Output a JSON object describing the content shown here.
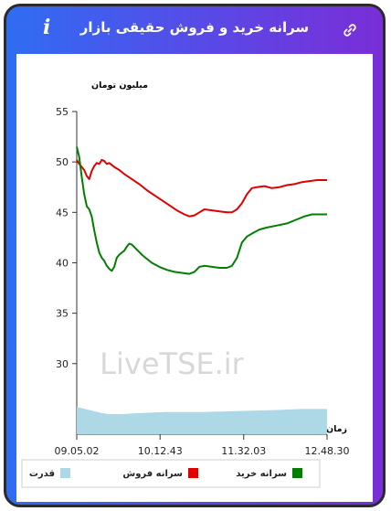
{
  "header": {
    "title": "سرانه خرید و فروش حقیقی بازار",
    "info_icon": "i",
    "link_icon": "link-icon"
  },
  "watermark": "LiveTSE.ir",
  "chart_data": {
    "type": "line",
    "ylabel": "میلیون تومان",
    "xlabel": "زمان",
    "yticks": [
      30,
      35,
      40,
      45,
      50,
      55
    ],
    "ylim": [
      23,
      55
    ],
    "xlim": [
      0,
      100
    ],
    "xticks": [
      {
        "x": 0,
        "label": "09.05.02"
      },
      {
        "x": 33.3,
        "label": "10.12.43"
      },
      {
        "x": 66.7,
        "label": "11.32.03"
      },
      {
        "x": 100,
        "label": "12.48.30"
      }
    ],
    "legend": [
      {
        "name": "سرانه خرید",
        "color": "#008000"
      },
      {
        "name": "سرانه فروش",
        "color": "#e00000"
      },
      {
        "name": "قدرت",
        "color": "#add8e6"
      }
    ],
    "series": [
      {
        "name": "سرانه فروش",
        "color": "#e00000",
        "points": [
          [
            0,
            50.2
          ],
          [
            1,
            49.8
          ],
          [
            2,
            49.5
          ],
          [
            3,
            49.2
          ],
          [
            4,
            48.6
          ],
          [
            5,
            48.3
          ],
          [
            6,
            49.1
          ],
          [
            7,
            49.6
          ],
          [
            8,
            49.9
          ],
          [
            9,
            49.8
          ],
          [
            10,
            50.2
          ],
          [
            11,
            50.1
          ],
          [
            12,
            49.8
          ],
          [
            13,
            49.9
          ],
          [
            15,
            49.5
          ],
          [
            17,
            49.2
          ],
          [
            19,
            48.8
          ],
          [
            22,
            48.3
          ],
          [
            25,
            47.8
          ],
          [
            28,
            47.2
          ],
          [
            31,
            46.7
          ],
          [
            34,
            46.2
          ],
          [
            37,
            45.7
          ],
          [
            40,
            45.2
          ],
          [
            43,
            44.8
          ],
          [
            45,
            44.6
          ],
          [
            47,
            44.7
          ],
          [
            49,
            45.0
          ],
          [
            51,
            45.3
          ],
          [
            54,
            45.2
          ],
          [
            57,
            45.1
          ],
          [
            60,
            45.0
          ],
          [
            62,
            45.0
          ],
          [
            64,
            45.3
          ],
          [
            66,
            45.9
          ],
          [
            68,
            46.8
          ],
          [
            70,
            47.4
          ],
          [
            72,
            47.5
          ],
          [
            75,
            47.6
          ],
          [
            78,
            47.4
          ],
          [
            81,
            47.5
          ],
          [
            84,
            47.7
          ],
          [
            87,
            47.8
          ],
          [
            90,
            48.0
          ],
          [
            93,
            48.1
          ],
          [
            96,
            48.2
          ],
          [
            100,
            48.2
          ]
        ]
      },
      {
        "name": "سرانه خرید",
        "color": "#008000",
        "points": [
          [
            0,
            51.5
          ],
          [
            1,
            50.5
          ],
          [
            2,
            48.5
          ],
          [
            3,
            46.8
          ],
          [
            4,
            45.6
          ],
          [
            5,
            45.3
          ],
          [
            6,
            44.6
          ],
          [
            7,
            43.2
          ],
          [
            8,
            42.0
          ],
          [
            9,
            41.0
          ],
          [
            10,
            40.5
          ],
          [
            11,
            40.2
          ],
          [
            12,
            39.7
          ],
          [
            13,
            39.4
          ],
          [
            14,
            39.2
          ],
          [
            15,
            39.6
          ],
          [
            16,
            40.5
          ],
          [
            17,
            40.8
          ],
          [
            18,
            41.0
          ],
          [
            19,
            41.2
          ],
          [
            20,
            41.6
          ],
          [
            21,
            41.9
          ],
          [
            22,
            41.8
          ],
          [
            24,
            41.3
          ],
          [
            26,
            40.8
          ],
          [
            28,
            40.4
          ],
          [
            30,
            40.0
          ],
          [
            33,
            39.6
          ],
          [
            36,
            39.3
          ],
          [
            39,
            39.1
          ],
          [
            42,
            39.0
          ],
          [
            45,
            38.9
          ],
          [
            47,
            39.1
          ],
          [
            49,
            39.6
          ],
          [
            51,
            39.7
          ],
          [
            54,
            39.6
          ],
          [
            57,
            39.5
          ],
          [
            60,
            39.5
          ],
          [
            62,
            39.7
          ],
          [
            64,
            40.5
          ],
          [
            66,
            42.0
          ],
          [
            68,
            42.6
          ],
          [
            70,
            42.9
          ],
          [
            73,
            43.3
          ],
          [
            76,
            43.5
          ],
          [
            80,
            43.7
          ],
          [
            84,
            43.9
          ],
          [
            88,
            44.3
          ],
          [
            91,
            44.6
          ],
          [
            94,
            44.8
          ],
          [
            97,
            44.8
          ],
          [
            100,
            44.8
          ]
        ]
      },
      {
        "name": "قدرت",
        "color": "#add8e6",
        "points": [
          [
            0,
            25.7
          ],
          [
            5,
            25.4
          ],
          [
            10,
            25.1
          ],
          [
            13,
            25.0
          ],
          [
            18,
            25.0
          ],
          [
            25,
            25.1
          ],
          [
            35,
            25.2
          ],
          [
            50,
            25.2
          ],
          [
            65,
            25.3
          ],
          [
            80,
            25.4
          ],
          [
            90,
            25.5
          ],
          [
            100,
            25.5
          ]
        ]
      }
    ]
  }
}
